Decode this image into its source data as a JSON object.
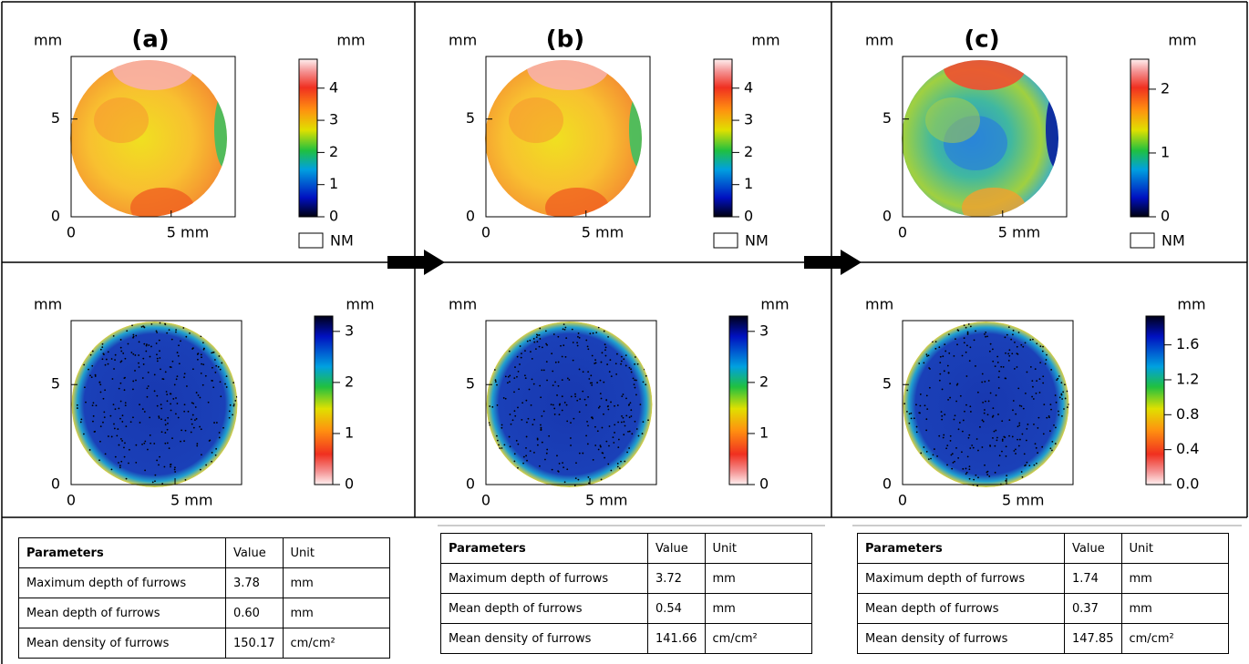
{
  "panels": [
    {
      "label": "(a)",
      "top": {
        "y_unit": "mm",
        "cbar_unit": "mm",
        "xlim": [
          0,
          8.2
        ],
        "ylim": [
          0,
          8.2
        ],
        "xticks": [
          0,
          {
            "value": 5,
            "label": "5 mm"
          }
        ],
        "yticks": [
          0,
          5
        ],
        "cbar_lim": [
          0,
          4.9
        ],
        "cbar_ticks": [
          0,
          1,
          2,
          3,
          4
        ],
        "legend": "NM"
      },
      "bottom": {
        "y_unit": "mm",
        "cbar_unit": "mm",
        "xlim": [
          0,
          8.2
        ],
        "ylim": [
          0,
          8.2
        ],
        "xticks": [
          0,
          {
            "value": 5,
            "label": "5 mm"
          }
        ],
        "yticks": [
          0,
          5
        ],
        "cbar_lim": [
          0,
          3.3
        ],
        "cbar_ticks": [
          0,
          1,
          2,
          3
        ]
      },
      "table": {
        "header": [
          "Parameters",
          "Value",
          "Unit"
        ],
        "rows": [
          [
            "Maximum depth of furrows",
            "3.78",
            "mm"
          ],
          [
            "Mean depth of furrows",
            "0.60",
            "mm"
          ],
          [
            "Mean density of furrows",
            "150.17",
            "cm/cm²"
          ]
        ]
      }
    },
    {
      "label": "(b)",
      "top": {
        "y_unit": "mm",
        "cbar_unit": "mm",
        "xlim": [
          0,
          8.2
        ],
        "ylim": [
          0,
          8.2
        ],
        "xticks": [
          0,
          {
            "value": 5,
            "label": "5 mm"
          }
        ],
        "yticks": [
          0,
          5
        ],
        "cbar_lim": [
          0,
          4.9
        ],
        "cbar_ticks": [
          0,
          1,
          2,
          3,
          4
        ],
        "legend": "NM"
      },
      "bottom": {
        "y_unit": "mm",
        "cbar_unit": "mm",
        "xlim": [
          0,
          8.2
        ],
        "ylim": [
          0,
          8.2
        ],
        "xticks": [
          0,
          {
            "value": 5,
            "label": "5 mm"
          }
        ],
        "yticks": [
          0,
          5
        ],
        "cbar_lim": [
          0,
          3.3
        ],
        "cbar_ticks": [
          0,
          1,
          2,
          3
        ]
      },
      "table": {
        "header": [
          "Parameters",
          "Value",
          "Unit"
        ],
        "rows": [
          [
            "Maximum depth of furrows",
            "3.72",
            "mm"
          ],
          [
            "Mean depth of furrows",
            "0.54",
            "mm"
          ],
          [
            "Mean density of furrows",
            "141.66",
            "cm/cm²"
          ]
        ]
      }
    },
    {
      "label": "(c)",
      "top": {
        "y_unit": "mm",
        "cbar_unit": "mm",
        "xlim": [
          0,
          8.2
        ],
        "ylim": [
          0,
          8.2
        ],
        "xticks": [
          0,
          {
            "value": 5,
            "label": "5 mm"
          }
        ],
        "yticks": [
          0,
          5
        ],
        "cbar_lim": [
          0,
          2.47
        ],
        "cbar_ticks": [
          0,
          1,
          2
        ],
        "legend": "NM"
      },
      "bottom": {
        "y_unit": "mm",
        "cbar_unit": "mm",
        "xlim": [
          0,
          8.2
        ],
        "ylim": [
          0,
          8.2
        ],
        "xticks": [
          0,
          {
            "value": 5,
            "label": "5 mm"
          }
        ],
        "yticks": [
          0,
          5
        ],
        "cbar_lim": [
          0,
          1.93
        ],
        "cbar_ticks": [
          {
            "value": 0,
            "label": "0.0"
          },
          0.4,
          0.8,
          1.2,
          1.6
        ]
      },
      "table": {
        "header": [
          "Parameters",
          "Value",
          "Unit"
        ],
        "rows": [
          [
            "Maximum depth of furrows",
            "1.74",
            "mm"
          ],
          [
            "Mean depth of furrows",
            "0.37",
            "mm"
          ],
          [
            "Mean density of furrows",
            "147.85",
            "cm/cm²"
          ]
        ]
      }
    }
  ]
}
